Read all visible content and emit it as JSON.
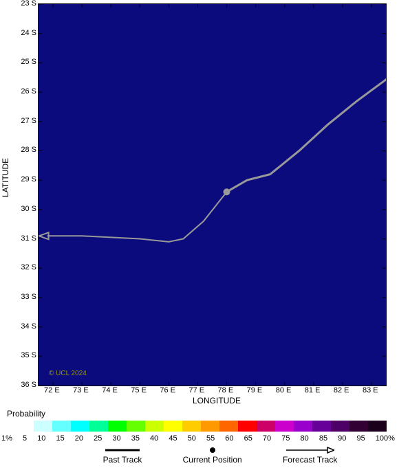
{
  "chart": {
    "type": "map-track",
    "background_color": "#0b0b7d",
    "track_color": "#999999",
    "track_width": 3,
    "credit": "© UCL 2024",
    "credit_color": "#999900",
    "x_axis": {
      "title": "LONGITUDE",
      "ticks": [
        "72 E",
        "73 E",
        "74 E",
        "75 E",
        "76 E",
        "77 E",
        "78 E",
        "79 E",
        "80 E",
        "81 E",
        "82 E",
        "83 E"
      ],
      "min": 71.5,
      "max": 83.5
    },
    "y_axis": {
      "title": "LATITUDE",
      "ticks": [
        "23 S",
        "24 S",
        "25 S",
        "26 S",
        "27 S",
        "28 S",
        "29 S",
        "30 S",
        "31 S",
        "32 S",
        "33 S",
        "34 S",
        "35 S",
        "36 S"
      ],
      "min": -36,
      "max": -23
    },
    "past_track": [
      {
        "lon": 83.6,
        "lat": -25.5
      },
      {
        "lon": 82.5,
        "lat": -26.3
      },
      {
        "lon": 81.5,
        "lat": -27.1
      },
      {
        "lon": 80.5,
        "lat": -28.0
      },
      {
        "lon": 79.5,
        "lat": -28.8
      },
      {
        "lon": 78.7,
        "lat": -29.0
      },
      {
        "lon": 78.0,
        "lat": -29.4
      }
    ],
    "current_position": {
      "lon": 78.0,
      "lat": -29.4
    },
    "forecast_track": [
      {
        "lon": 78.0,
        "lat": -29.4
      },
      {
        "lon": 77.2,
        "lat": -30.4
      },
      {
        "lon": 76.5,
        "lat": -31.0
      },
      {
        "lon": 76.0,
        "lat": -31.1
      },
      {
        "lon": 75.0,
        "lat": -31.0
      },
      {
        "lon": 74.0,
        "lat": -30.95
      },
      {
        "lon": 73.0,
        "lat": -30.9
      },
      {
        "lon": 71.8,
        "lat": -30.9
      }
    ]
  },
  "probability": {
    "label": "Probability",
    "colors": [
      "#ffffff",
      "#ccffff",
      "#66ffff",
      "#00ffff",
      "#00ff99",
      "#00ff00",
      "#66ff00",
      "#ccff00",
      "#ffff00",
      "#ffcc00",
      "#ff9900",
      "#ff6600",
      "#ff0000",
      "#cc0066",
      "#cc00cc",
      "#9900cc",
      "#660099",
      "#4d0066",
      "#330033",
      "#1a001a"
    ],
    "ticks": [
      "1%",
      "5",
      "10",
      "15",
      "20",
      "25",
      "30",
      "35",
      "40",
      "45",
      "50",
      "55",
      "60",
      "65",
      "70",
      "75",
      "80",
      "85",
      "90",
      "95",
      "100%"
    ]
  },
  "legend": {
    "past_track": "Past Track",
    "current_position": "Current Position",
    "forecast_track": "Forecast Track"
  }
}
